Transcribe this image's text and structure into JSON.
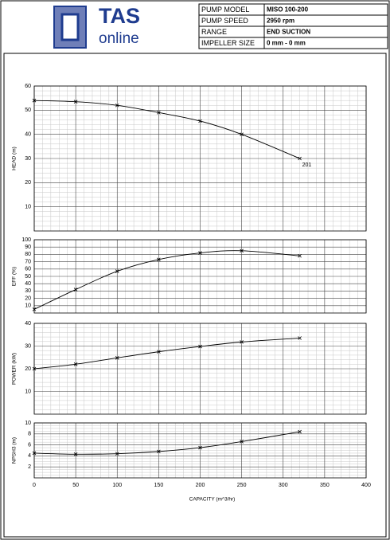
{
  "header": {
    "logo_top": "TAS",
    "logo_bottom": "online",
    "table": [
      [
        "PUMP MODEL",
        "MISO 100-200"
      ],
      [
        "PUMP SPEED",
        "2950 rpm"
      ],
      [
        "RANGE",
        "END SUCTION"
      ],
      [
        "IMPELLER SIZE",
        "0 mm - 0 mm"
      ]
    ]
  },
  "chart_data": [
    {
      "type": "line",
      "y_label": "HEAD (m)",
      "x": [
        0,
        50,
        100,
        150,
        200,
        250,
        320
      ],
      "xlim": [
        0,
        400
      ],
      "xticks": [
        0,
        50,
        100,
        150,
        200,
        250,
        300,
        350,
        400
      ],
      "ylim": [
        0,
        60
      ],
      "yticks": [
        10,
        20,
        30,
        40,
        50,
        60
      ],
      "grid": true,
      "series": [
        {
          "name": "201",
          "color": "#000000",
          "values": [
            54,
            53.5,
            52,
            49,
            45.5,
            40,
            30
          ]
        }
      ]
    },
    {
      "type": "line",
      "y_label": "EFF (%)",
      "x": [
        0,
        50,
        100,
        150,
        200,
        250,
        320
      ],
      "xlim": [
        0,
        400
      ],
      "xticks": [
        0,
        50,
        100,
        150,
        200,
        250,
        300,
        350,
        400
      ],
      "ylim": [
        0,
        100
      ],
      "yticks": [
        10,
        20,
        30,
        40,
        50,
        60,
        70,
        80,
        90,
        100
      ],
      "grid": true,
      "series": [
        {
          "color": "#000000",
          "values": [
            5,
            32,
            57,
            73,
            82,
            85,
            78
          ]
        }
      ]
    },
    {
      "type": "line",
      "y_label": "POWER (kW)",
      "x": [
        0,
        50,
        100,
        150,
        200,
        250,
        320
      ],
      "xlim": [
        0,
        400
      ],
      "xticks": [
        0,
        50,
        100,
        150,
        200,
        250,
        300,
        350,
        400
      ],
      "ylim": [
        0,
        40
      ],
      "yticks": [
        10,
        20,
        30,
        40
      ],
      "grid": true,
      "series": [
        {
          "color": "#000000",
          "values": [
            20,
            22,
            24.8,
            27.5,
            29.8,
            31.8,
            33.5
          ]
        }
      ]
    },
    {
      "type": "line",
      "y_label": "NPSH3 (m)",
      "x_label": "CAPACITY (m^3/hr)",
      "x": [
        0,
        50,
        100,
        150,
        200,
        250,
        320
      ],
      "xlim": [
        0,
        400
      ],
      "xticks": [
        0,
        50,
        100,
        150,
        200,
        250,
        300,
        350,
        400
      ],
      "ylim": [
        0,
        10
      ],
      "yticks": [
        2,
        4,
        6,
        8,
        10
      ],
      "grid": true,
      "series": [
        {
          "color": "#000000",
          "values": [
            4.5,
            4.3,
            4.4,
            4.8,
            5.5,
            6.6,
            8.4
          ]
        }
      ]
    }
  ]
}
